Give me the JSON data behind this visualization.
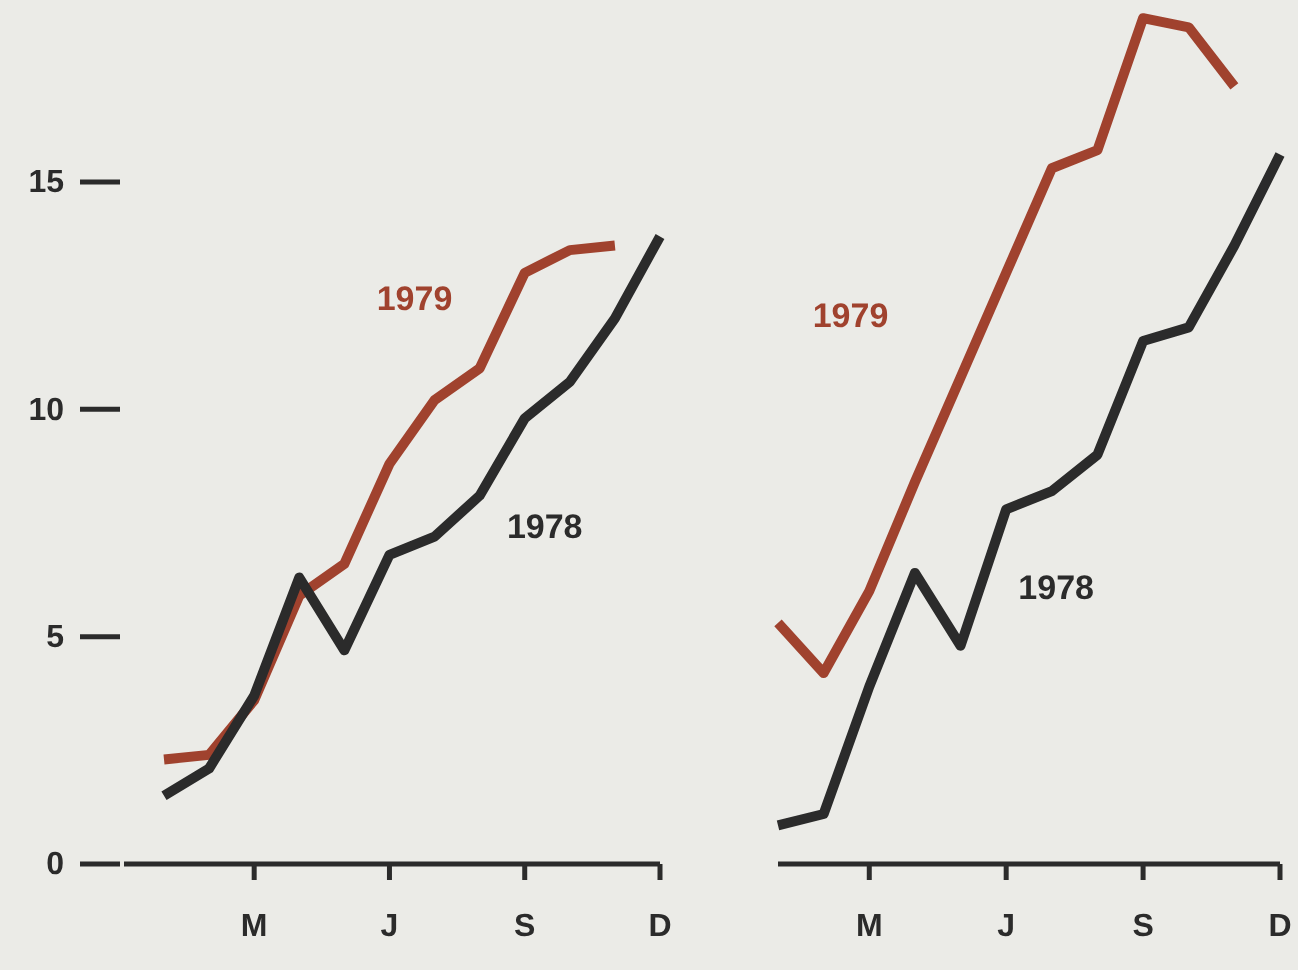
{
  "chart_data": [
    {
      "type": "line",
      "categories": [
        null,
        null,
        "M",
        null,
        null,
        "J",
        null,
        null,
        "S",
        null,
        null,
        "D"
      ],
      "ylim": [
        0,
        19
      ],
      "yticks": [
        0,
        5,
        10,
        15
      ],
      "series": [
        {
          "name": "1979",
          "color": "#a0422e",
          "values": [
            2.3,
            2.4,
            3.6,
            5.9,
            6.6,
            8.8,
            10.2,
            10.9,
            13.0,
            13.5,
            13.6,
            null
          ]
        },
        {
          "name": "1978",
          "color": "#2b2b2b",
          "values": [
            1.5,
            2.1,
            3.7,
            6.3,
            4.7,
            6.8,
            7.2,
            8.1,
            9.8,
            10.6,
            12.0,
            13.8
          ]
        }
      ]
    },
    {
      "type": "line",
      "categories": [
        null,
        null,
        "M",
        null,
        null,
        "J",
        null,
        null,
        "S",
        null,
        null,
        "D"
      ],
      "ylim": [
        0,
        19
      ],
      "tick_labels": "x",
      "series": [
        {
          "name": "1979",
          "color": "#a0422e",
          "values": [
            5.3,
            4.2,
            6.0,
            8.4,
            10.7,
            13.0,
            15.3,
            15.7,
            18.6,
            18.4,
            17.1,
            null
          ]
        },
        {
          "name": "1978",
          "color": "#2b2b2b",
          "values": [
            0.85,
            1.1,
            3.9,
            6.4,
            4.8,
            7.8,
            8.2,
            9.0,
            11.5,
            11.8,
            13.6,
            15.6
          ]
        }
      ]
    }
  ]
}
